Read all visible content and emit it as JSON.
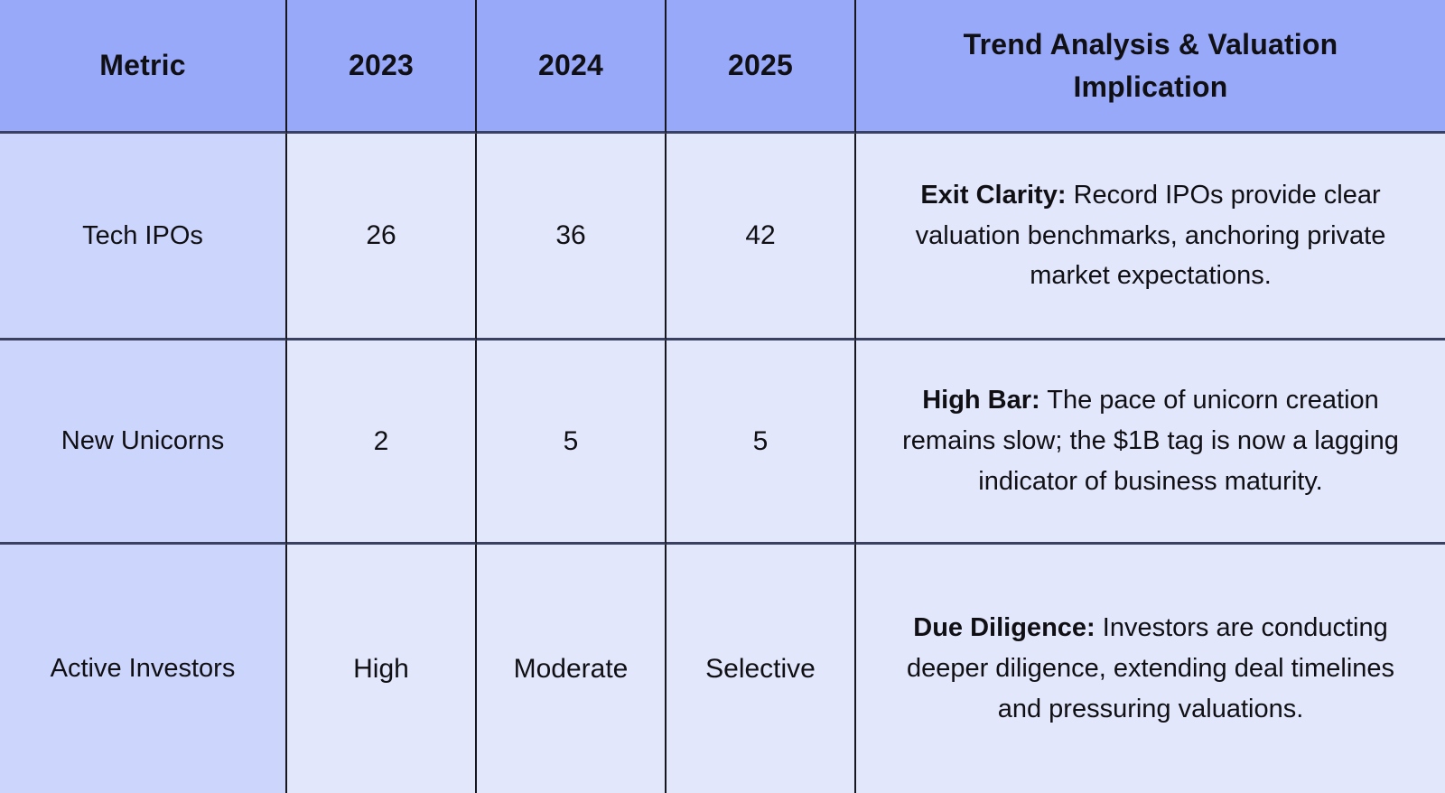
{
  "chart_data": {
    "type": "table",
    "columns": [
      "Metric",
      "2023",
      "2024",
      "2025",
      "Trend Analysis & Valuation Implication"
    ],
    "rows": [
      {
        "metric": "Tech IPOs",
        "v2023": "26",
        "v2024": "36",
        "v2025": "42",
        "trend_lead": "Exit Clarity:",
        "trend_text": "Record IPOs provide clear valuation benchmarks, anchoring private market expectations."
      },
      {
        "metric": "New Unicorns",
        "v2023": "2",
        "v2024": "5",
        "v2025": "5",
        "trend_lead": "High Bar:",
        "trend_text": "The pace of unicorn creation remains slow; the $1B tag is now a lagging indicator of business maturity."
      },
      {
        "metric": "Active Investors",
        "v2023": "High",
        "v2024": "Moderate",
        "v2025": "Selective",
        "trend_lead": "Due Diligence:",
        "trend_text": "Investors are conducting deeper diligence, extending deal timelines and pressuring valuations."
      }
    ]
  },
  "colors": {
    "header_bg": "#99a9fa",
    "metric_col_bg": "#ccd5fb",
    "cell_bg": "#e2e7fc",
    "border_vertical": "#16171f",
    "border_horizontal": "#3a4160",
    "text": "#101014"
  }
}
